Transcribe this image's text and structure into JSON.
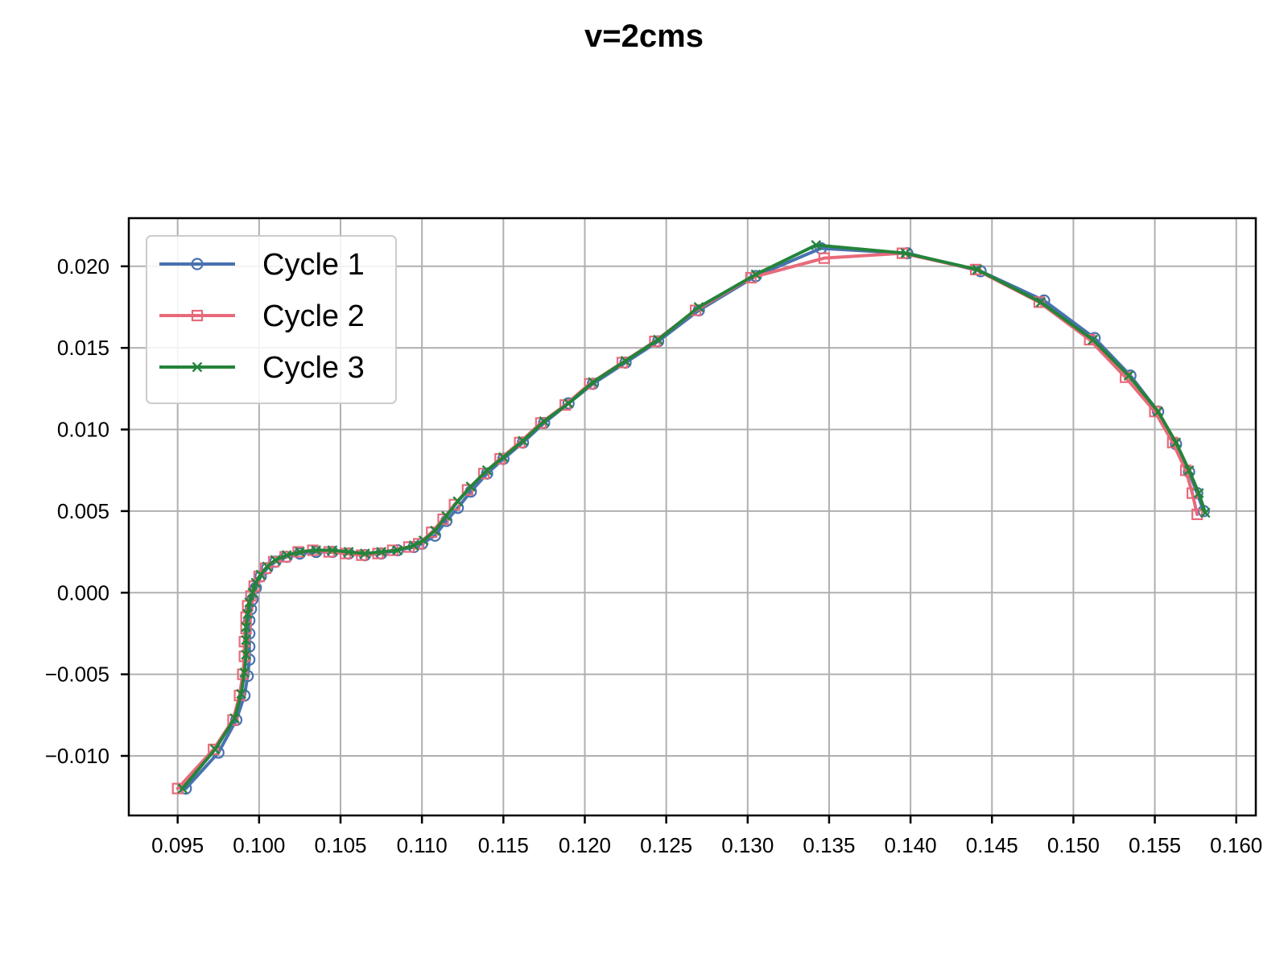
{
  "chart_data": {
    "type": "line",
    "title": "v=2cms",
    "xlabel": "",
    "ylabel": "",
    "xlim": [
      0.092,
      0.1612
    ],
    "ylim": [
      -0.01365,
      0.02295
    ],
    "grid": true,
    "legend_position": "top-left",
    "x_ticks": [
      "0.095",
      "0.100",
      "0.105",
      "0.110",
      "0.115",
      "0.120",
      "0.125",
      "0.130",
      "0.135",
      "0.140",
      "0.145",
      "0.150",
      "0.155",
      "0.160"
    ],
    "y_ticks": [
      "−0.010",
      "−0.005",
      "0.000",
      "0.005",
      "0.010",
      "0.015",
      "0.020"
    ],
    "series": [
      {
        "name": "Cycle 1",
        "color": "#4872b0",
        "marker": "circle",
        "points": [
          [
            0.0955,
            -0.012
          ],
          [
            0.0975,
            -0.0098
          ],
          [
            0.0986,
            -0.0078
          ],
          [
            0.0991,
            -0.0063
          ],
          [
            0.0993,
            -0.0051
          ],
          [
            0.0994,
            -0.0041
          ],
          [
            0.0994,
            -0.0033
          ],
          [
            0.0994,
            -0.0025
          ],
          [
            0.0994,
            -0.0017
          ],
          [
            0.0995,
            -0.001
          ],
          [
            0.0996,
            -0.0004
          ],
          [
            0.0998,
            0.0003
          ],
          [
            0.1001,
            0.001
          ],
          [
            0.1005,
            0.0015
          ],
          [
            0.101,
            0.0019
          ],
          [
            0.1017,
            0.0022
          ],
          [
            0.1025,
            0.0024
          ],
          [
            0.1035,
            0.0025
          ],
          [
            0.1045,
            0.0025
          ],
          [
            0.1055,
            0.0024
          ],
          [
            0.1065,
            0.0023
          ],
          [
            0.1075,
            0.0024
          ],
          [
            0.1085,
            0.0026
          ],
          [
            0.1095,
            0.0028
          ],
          [
            0.11,
            0.003
          ],
          [
            0.1108,
            0.0035
          ],
          [
            0.1115,
            0.0044
          ],
          [
            0.1122,
            0.0052
          ],
          [
            0.113,
            0.0062
          ],
          [
            0.114,
            0.0073
          ],
          [
            0.115,
            0.0082
          ],
          [
            0.1162,
            0.0092
          ],
          [
            0.1175,
            0.0104
          ],
          [
            0.119,
            0.0116
          ],
          [
            0.1205,
            0.0128
          ],
          [
            0.1225,
            0.0141
          ],
          [
            0.1245,
            0.0154
          ],
          [
            0.127,
            0.0173
          ],
          [
            0.1305,
            0.0194
          ],
          [
            0.1345,
            0.0211
          ],
          [
            0.1398,
            0.0208
          ],
          [
            0.1443,
            0.0197
          ],
          [
            0.1482,
            0.0179
          ],
          [
            0.1513,
            0.0156
          ],
          [
            0.1535,
            0.0133
          ],
          [
            0.1552,
            0.0111
          ],
          [
            0.1563,
            0.0091
          ],
          [
            0.1571,
            0.0074
          ],
          [
            0.1576,
            0.0061
          ],
          [
            0.158,
            0.005
          ]
        ]
      },
      {
        "name": "Cycle 2",
        "color": "#e86a7a",
        "marker": "square",
        "points": [
          [
            0.095,
            -0.012
          ],
          [
            0.0972,
            -0.0096
          ],
          [
            0.0984,
            -0.0078
          ],
          [
            0.0988,
            -0.0063
          ],
          [
            0.099,
            -0.005
          ],
          [
            0.0991,
            -0.0039
          ],
          [
            0.0991,
            -0.003
          ],
          [
            0.0992,
            -0.0022
          ],
          [
            0.0992,
            -0.0015
          ],
          [
            0.0993,
            -0.0008
          ],
          [
            0.0995,
            -0.0002
          ],
          [
            0.0997,
            0.0004
          ],
          [
            0.1,
            0.001
          ],
          [
            0.1004,
            0.0015
          ],
          [
            0.1009,
            0.0019
          ],
          [
            0.1016,
            0.0022
          ],
          [
            0.1024,
            0.0025
          ],
          [
            0.1033,
            0.0026
          ],
          [
            0.1043,
            0.0025
          ],
          [
            0.1053,
            0.0024
          ],
          [
            0.1063,
            0.0023
          ],
          [
            0.1073,
            0.0024
          ],
          [
            0.1082,
            0.0026
          ],
          [
            0.1092,
            0.0028
          ],
          [
            0.1098,
            0.003
          ],
          [
            0.1106,
            0.0037
          ],
          [
            0.1113,
            0.0045
          ],
          [
            0.112,
            0.0054
          ],
          [
            0.1128,
            0.0063
          ],
          [
            0.1138,
            0.0073
          ],
          [
            0.1148,
            0.0082
          ],
          [
            0.116,
            0.0092
          ],
          [
            0.1173,
            0.0104
          ],
          [
            0.1188,
            0.0115
          ],
          [
            0.1203,
            0.0128
          ],
          [
            0.1223,
            0.0141
          ],
          [
            0.1243,
            0.0154
          ],
          [
            0.1268,
            0.0173
          ],
          [
            0.1302,
            0.0193
          ],
          [
            0.1347,
            0.0205
          ],
          [
            0.1395,
            0.0208
          ],
          [
            0.144,
            0.0198
          ],
          [
            0.1479,
            0.0178
          ],
          [
            0.151,
            0.0155
          ],
          [
            0.1532,
            0.0132
          ],
          [
            0.155,
            0.0111
          ],
          [
            0.1561,
            0.0092
          ],
          [
            0.1569,
            0.0075
          ],
          [
            0.1573,
            0.0061
          ],
          [
            0.1576,
            0.0048
          ]
        ]
      },
      {
        "name": "Cycle 3",
        "color": "#24843a",
        "marker": "x",
        "points": [
          [
            0.0953,
            -0.012
          ],
          [
            0.0973,
            -0.0096
          ],
          [
            0.0985,
            -0.0077
          ],
          [
            0.0989,
            -0.0062
          ],
          [
            0.0991,
            -0.0049
          ],
          [
            0.0992,
            -0.0038
          ],
          [
            0.0992,
            -0.0029
          ],
          [
            0.0992,
            -0.0021
          ],
          [
            0.0993,
            -0.0013
          ],
          [
            0.0994,
            -0.0006
          ],
          [
            0.0996,
            0.0
          ],
          [
            0.0998,
            0.0006
          ],
          [
            0.1001,
            0.0011
          ],
          [
            0.1005,
            0.0016
          ],
          [
            0.101,
            0.002
          ],
          [
            0.1017,
            0.0023
          ],
          [
            0.1025,
            0.0025
          ],
          [
            0.1035,
            0.0026
          ],
          [
            0.1045,
            0.0026
          ],
          [
            0.1055,
            0.0025
          ],
          [
            0.1065,
            0.0024
          ],
          [
            0.1075,
            0.0025
          ],
          [
            0.1085,
            0.0026
          ],
          [
            0.1095,
            0.0029
          ],
          [
            0.1101,
            0.0032
          ],
          [
            0.1108,
            0.0038
          ],
          [
            0.1115,
            0.0047
          ],
          [
            0.1122,
            0.0056
          ],
          [
            0.113,
            0.0065
          ],
          [
            0.114,
            0.0075
          ],
          [
            0.115,
            0.0083
          ],
          [
            0.1162,
            0.0093
          ],
          [
            0.1175,
            0.0105
          ],
          [
            0.119,
            0.0116
          ],
          [
            0.1205,
            0.0129
          ],
          [
            0.1225,
            0.0142
          ],
          [
            0.1245,
            0.0155
          ],
          [
            0.127,
            0.0175
          ],
          [
            0.1305,
            0.0195
          ],
          [
            0.1342,
            0.0213
          ],
          [
            0.1397,
            0.0208
          ],
          [
            0.1441,
            0.0198
          ],
          [
            0.148,
            0.0178
          ],
          [
            0.1512,
            0.0155
          ],
          [
            0.1534,
            0.0133
          ],
          [
            0.1552,
            0.0111
          ],
          [
            0.1563,
            0.0092
          ],
          [
            0.1571,
            0.0075
          ],
          [
            0.1577,
            0.0061
          ],
          [
            0.1581,
            0.0049
          ]
        ]
      }
    ]
  }
}
